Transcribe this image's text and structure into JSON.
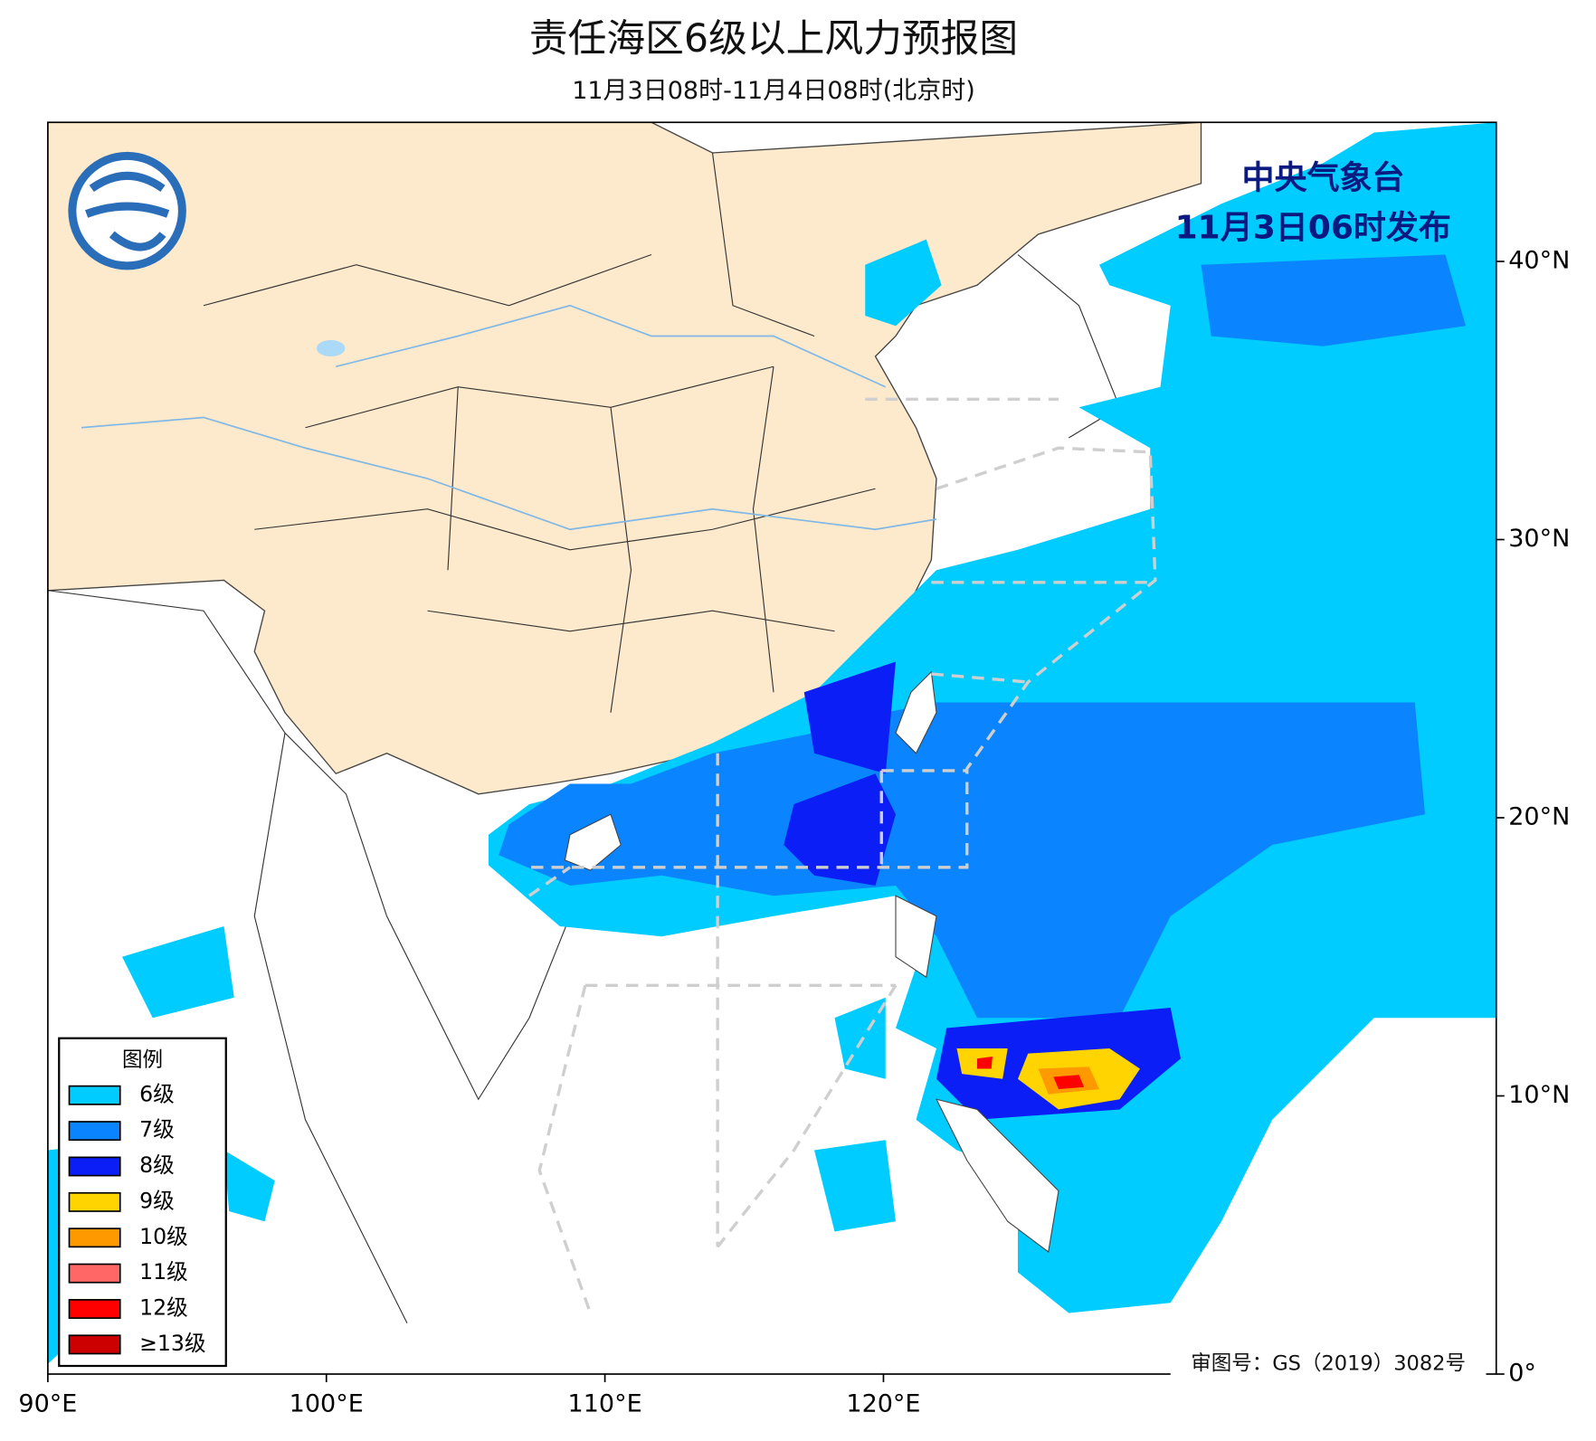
{
  "header": {
    "title": "责任海区6级以上风力预报图",
    "subtitle": "11月3日08时-11月4日08时(北京时)"
  },
  "issuer": {
    "agency": "中央气象台",
    "issued": "11月3日06时发布"
  },
  "map": {
    "xlim": [
      90,
      142
    ],
    "ylim": [
      0,
      45
    ],
    "xticks": [
      {
        "value": 90,
        "label": "90°E"
      },
      {
        "value": 100,
        "label": "100°E"
      },
      {
        "value": 110,
        "label": "110°E"
      },
      {
        "value": 120,
        "label": "120°E"
      }
    ],
    "yticks": [
      {
        "value": 0,
        "label": "0°"
      },
      {
        "value": 10,
        "label": "10°N"
      },
      {
        "value": 20,
        "label": "20°N"
      },
      {
        "value": 30,
        "label": "30°N"
      },
      {
        "value": 40,
        "label": "40°N"
      }
    ]
  },
  "legend": {
    "title": "图例",
    "items": [
      {
        "label": "6级",
        "color": "#00ccff"
      },
      {
        "label": "7级",
        "color": "#0a84ff"
      },
      {
        "label": "8级",
        "color": "#0a1ef5"
      },
      {
        "label": "9级",
        "color": "#ffd400"
      },
      {
        "label": "10级",
        "color": "#ff9900"
      },
      {
        "label": "11级",
        "color": "#ff6666"
      },
      {
        "label": "12级",
        "color": "#ff0000"
      },
      {
        "label": "≥13级",
        "color": "#cc0000"
      }
    ]
  },
  "footer": {
    "review_number": "审图号：GS（2019）3082号"
  }
}
